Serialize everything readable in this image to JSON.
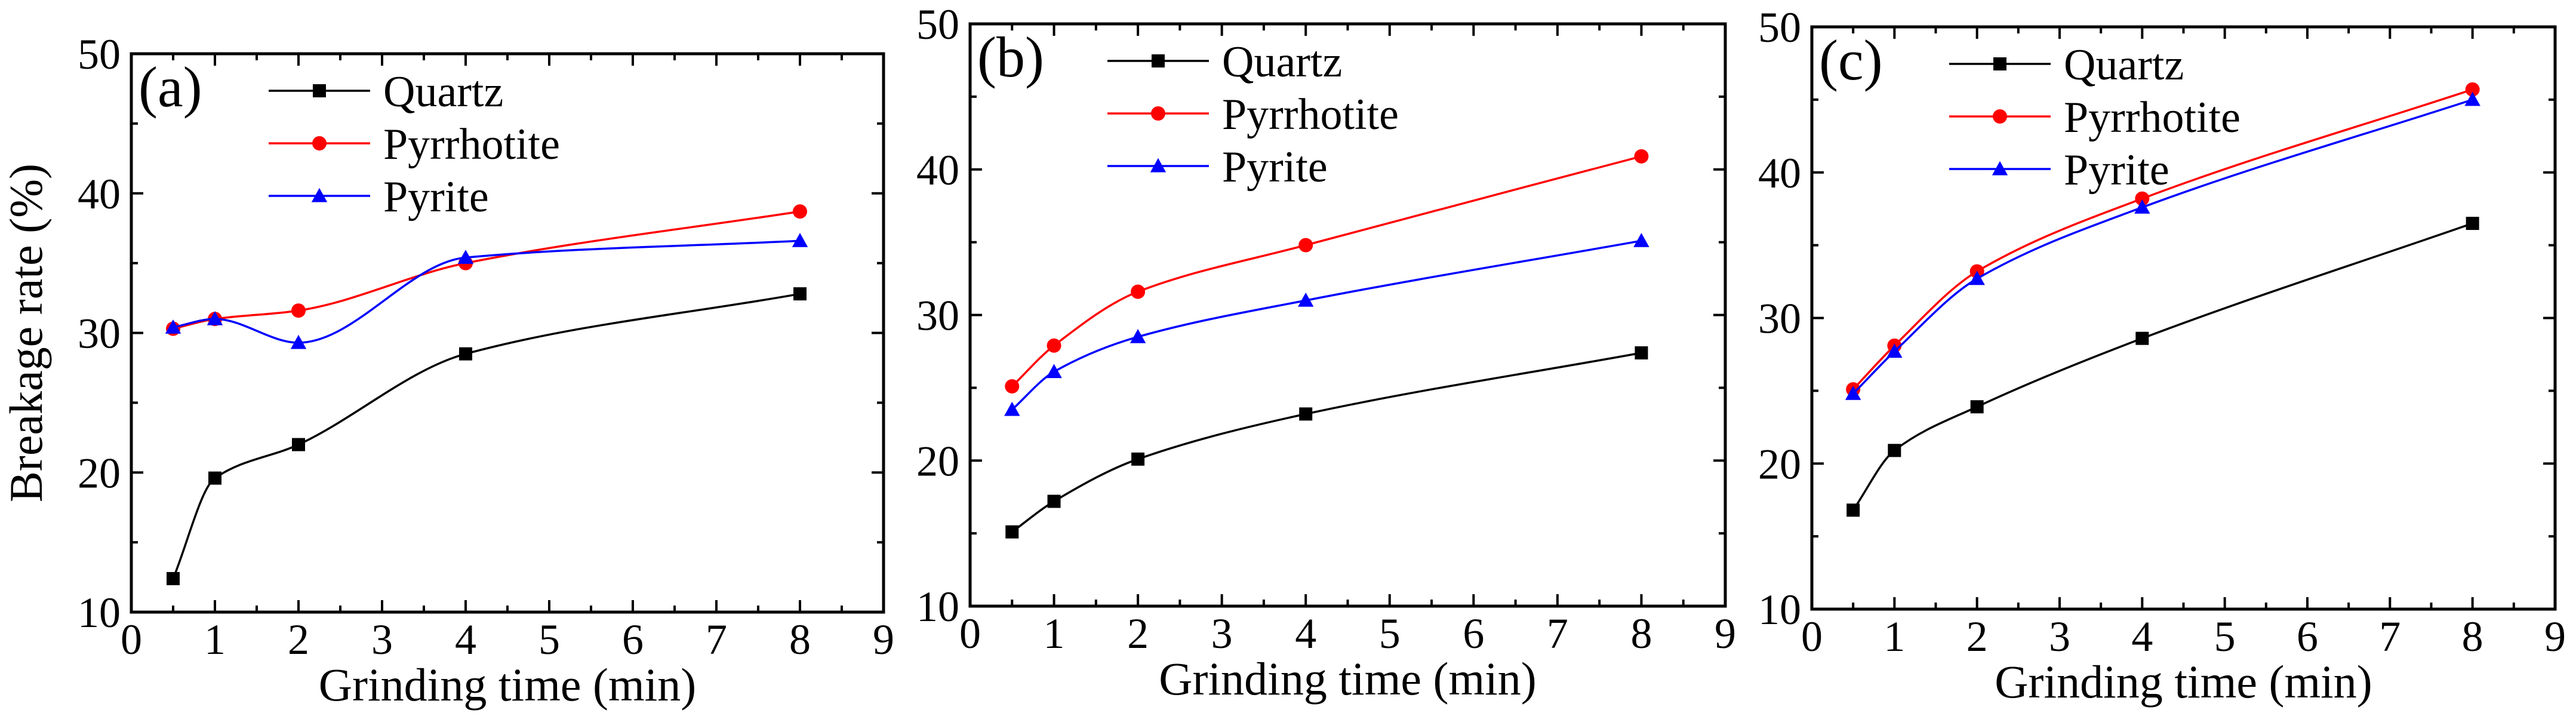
{
  "figure": {
    "description_domain": "Chart"
  },
  "chart_data": [
    {
      "type": "line",
      "panel_label": "(a)",
      "xlabel": "Grinding time (min)",
      "ylabel": "Breakage rate (%)",
      "xlim": [
        0,
        9
      ],
      "ylim": [
        10,
        50
      ],
      "xticks": [
        0,
        1,
        2,
        3,
        4,
        5,
        6,
        7,
        8,
        9
      ],
      "yticks": [
        10,
        20,
        30,
        40,
        50
      ],
      "legend_position": "top-left",
      "x": [
        0.5,
        1,
        2,
        4,
        8
      ],
      "series": [
        {
          "name": "Quartz",
          "marker": "square",
          "color": "#000000",
          "values": [
            12.4,
            19.6,
            22.0,
            28.5,
            32.8
          ]
        },
        {
          "name": "Pyrrhotite",
          "marker": "circle",
          "color": "#ff0000",
          "values": [
            30.3,
            31.0,
            31.6,
            35.0,
            38.7
          ]
        },
        {
          "name": "Pyrite",
          "marker": "triangle",
          "color": "#0000ff",
          "values": [
            30.4,
            31.0,
            29.3,
            35.4,
            36.6
          ]
        }
      ]
    },
    {
      "type": "line",
      "panel_label": "(b)",
      "xlabel": "Grinding time (min)",
      "ylabel": "",
      "xlim": [
        0,
        9
      ],
      "ylim": [
        10,
        50
      ],
      "xticks": [
        0,
        1,
        2,
        3,
        4,
        5,
        6,
        7,
        8,
        9
      ],
      "yticks": [
        10,
        20,
        30,
        40,
        50
      ],
      "legend_position": "top-left",
      "x": [
        0.5,
        1,
        2,
        4,
        8
      ],
      "series": [
        {
          "name": "Quartz",
          "marker": "square",
          "color": "#000000",
          "values": [
            15.1,
            17.2,
            20.1,
            23.2,
            27.4
          ]
        },
        {
          "name": "Pyrrhotite",
          "marker": "circle",
          "color": "#ff0000",
          "values": [
            25.1,
            27.9,
            31.6,
            34.8,
            40.9
          ]
        },
        {
          "name": "Pyrite",
          "marker": "triangle",
          "color": "#0000ff",
          "values": [
            23.5,
            26.1,
            28.5,
            31.0,
            35.1
          ]
        }
      ]
    },
    {
      "type": "line",
      "panel_label": "(c)",
      "xlabel": "Grinding time (min)",
      "ylabel": "",
      "xlim": [
        0,
        9
      ],
      "ylim": [
        10,
        50
      ],
      "xticks": [
        0,
        1,
        2,
        3,
        4,
        5,
        6,
        7,
        8,
        9
      ],
      "yticks": [
        10,
        20,
        30,
        40,
        50
      ],
      "legend_position": "top-left",
      "x": [
        0.5,
        1,
        2,
        4,
        8
      ],
      "series": [
        {
          "name": "Quartz",
          "marker": "square",
          "color": "#000000",
          "values": [
            16.8,
            20.9,
            23.9,
            28.6,
            36.5
          ]
        },
        {
          "name": "Pyrrhotite",
          "marker": "circle",
          "color": "#ff0000",
          "values": [
            25.1,
            28.1,
            33.2,
            38.2,
            45.7
          ]
        },
        {
          "name": "Pyrite",
          "marker": "triangle",
          "color": "#0000ff",
          "values": [
            24.8,
            27.7,
            32.7,
            37.6,
            45.0
          ]
        }
      ]
    }
  ]
}
